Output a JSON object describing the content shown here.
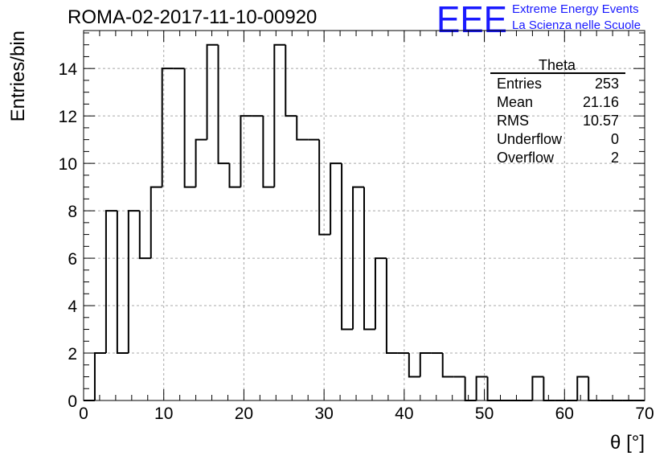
{
  "header": {
    "title": "ROMA-02-2017-11-10-00920",
    "logo_text": "EEE",
    "brand_line1": "Extreme Energy Events",
    "brand_line2": "La Scienza nelle Scuole",
    "brand_color": "#1a1aff"
  },
  "stats": {
    "name": "Theta",
    "rows": [
      {
        "label": "Entries",
        "value": "253"
      },
      {
        "label": "Mean",
        "value": "21.16"
      },
      {
        "label": "RMS",
        "value": "10.57"
      },
      {
        "label": "Underflow",
        "value": "0"
      },
      {
        "label": "Overflow",
        "value": "2"
      }
    ]
  },
  "chart_data": {
    "type": "bar",
    "histogram": true,
    "title": "ROMA-02-2017-11-10-00920",
    "xlabel": "θ [°]",
    "ylabel": "Entries/bin",
    "xlim": [
      0,
      70
    ],
    "ylim": [
      0,
      15.6
    ],
    "bin_width": 1.4,
    "grid": true,
    "xticks": [
      0,
      10,
      20,
      30,
      40,
      50,
      60,
      70
    ],
    "yticks": [
      0,
      2,
      4,
      6,
      8,
      10,
      12,
      14
    ],
    "bin_edges": [
      0,
      1.4,
      2.8,
      4.2,
      5.6,
      7.0,
      8.4,
      9.8,
      11.2,
      12.6,
      14.0,
      15.4,
      16.8,
      18.2,
      19.6,
      21.0,
      22.4,
      23.8,
      25.2,
      26.6,
      28.0,
      29.4,
      30.8,
      32.2,
      33.6,
      35.0,
      36.4,
      37.8,
      39.2,
      40.6,
      42.0,
      43.4,
      44.8,
      46.2,
      47.6,
      49.0,
      50.4,
      51.8,
      53.2,
      54.6,
      56.0,
      57.4,
      58.8,
      60.2,
      61.6,
      63.0,
      64.4,
      65.8,
      67.2,
      68.6,
      70.0
    ],
    "values": [
      0,
      2,
      8,
      2,
      8,
      6,
      9,
      14,
      14,
      9,
      11,
      15,
      10,
      9,
      12,
      12,
      9,
      15,
      12,
      11,
      11,
      7,
      10,
      3,
      9,
      3,
      6,
      2,
      2,
      1,
      2,
      2,
      1,
      1,
      0,
      1,
      0,
      0,
      0,
      0,
      1,
      0,
      0,
      0,
      1,
      0,
      0,
      0,
      0,
      0
    ]
  }
}
